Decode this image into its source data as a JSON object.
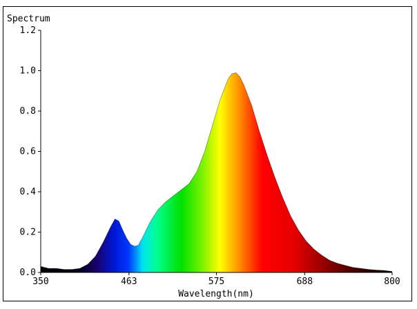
{
  "chart_data": {
    "type": "area",
    "title": "Spectrum",
    "xlabel": "Wavelength(nm)",
    "ylabel": "",
    "xlim": [
      350,
      800
    ],
    "ylim": [
      0,
      1.2
    ],
    "x_ticks": [
      350,
      463,
      575,
      688,
      800
    ],
    "x_tick_labels": [
      "350",
      "463",
      "575",
      "688",
      "800"
    ],
    "y_ticks": [
      0,
      0.2,
      0.4,
      0.6,
      0.8,
      1.0,
      1.2
    ],
    "y_tick_labels": [
      "0.0",
      "0.2",
      "0.4",
      "0.6",
      "0.8",
      "1.0",
      "1.2"
    ],
    "fill": "wavelength-color-gradient",
    "series": [
      {
        "x": [
          350,
          360,
          370,
          380,
          390,
          400,
          410,
          420,
          430,
          440,
          445,
          450,
          455,
          460,
          465,
          470,
          475,
          480,
          490,
          500,
          510,
          520,
          530,
          540,
          550,
          560,
          570,
          580,
          590,
          595,
          600,
          605,
          610,
          620,
          630,
          640,
          650,
          660,
          670,
          680,
          690,
          700,
          710,
          720,
          730,
          740,
          750,
          760,
          770,
          780,
          790,
          800
        ],
        "y": [
          0.03,
          0.02,
          0.02,
          0.015,
          0.015,
          0.02,
          0.04,
          0.08,
          0.15,
          0.23,
          0.265,
          0.255,
          0.21,
          0.17,
          0.14,
          0.13,
          0.135,
          0.17,
          0.25,
          0.31,
          0.35,
          0.38,
          0.41,
          0.44,
          0.5,
          0.6,
          0.73,
          0.86,
          0.96,
          0.985,
          0.99,
          0.97,
          0.93,
          0.83,
          0.7,
          0.58,
          0.47,
          0.37,
          0.28,
          0.21,
          0.155,
          0.115,
          0.085,
          0.06,
          0.045,
          0.035,
          0.025,
          0.02,
          0.015,
          0.012,
          0.01,
          0.005
        ]
      }
    ]
  }
}
